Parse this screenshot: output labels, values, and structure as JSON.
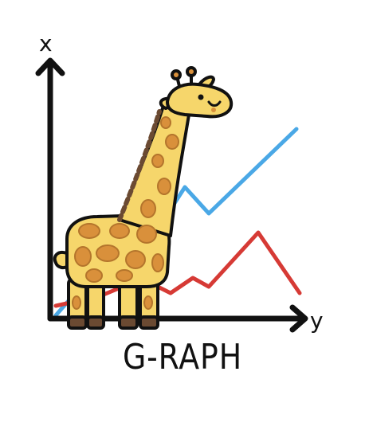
{
  "caption": "G-RAPH",
  "axes": {
    "vertical_label": "x",
    "horizontal_label": "y"
  },
  "colors": {
    "ink": "#111111",
    "line_blue": "#4aa8e6",
    "line_red": "#d63a35",
    "giraffe_body": "#f6d66b",
    "giraffe_spots": "#d9903b",
    "giraffe_hooves": "#6b4a32"
  }
}
